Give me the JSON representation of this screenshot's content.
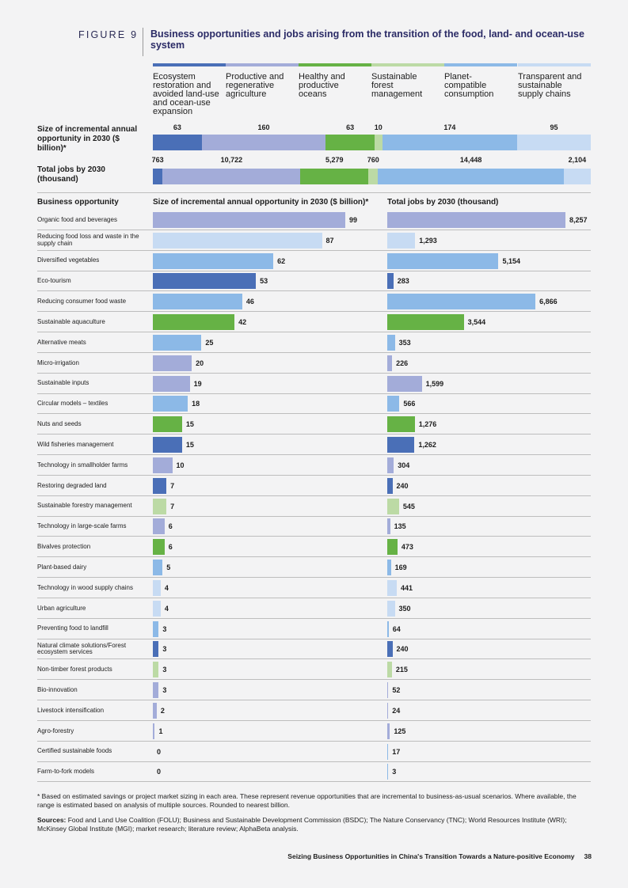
{
  "figure": {
    "label": "FIGURE 9",
    "title": "Business opportunities and jobs arising from the transition of the food, land- and ocean-use system"
  },
  "colors": {
    "ecosystem": "#4a6fb7",
    "productive": "#a3acd9",
    "oceans": "#66b245",
    "forest": "#bcdaa5",
    "planet": "#8cb9e7",
    "supply": "#c7dbf3",
    "gridline": "#bdbdbd"
  },
  "summary": {
    "size_label": "Size of incremental annual opportunity in 2030 ($ billion)*",
    "jobs_label": "Total jobs by 2030 (thousand)"
  },
  "sections": {
    "business_label": "Business opportunity",
    "size_header": "Size of incremental annual opportunity in 2030 ($ billion)*",
    "jobs_header": "Total jobs by 2030 (thousand)"
  },
  "chart_data": {
    "type": "bar",
    "categories": [
      {
        "key": "ecosystem",
        "label": "Ecosystem restoration and avoided land-use and ocean-use expansion",
        "size_label": "63",
        "jobs_label": "763"
      },
      {
        "key": "productive",
        "label": "Productive and regenerative agriculture",
        "size_label": "160",
        "jobs_label": "10,722"
      },
      {
        "key": "oceans",
        "label": "Healthy and productive oceans",
        "size_label": "63",
        "jobs_label": "5,279"
      },
      {
        "key": "forest",
        "label": "Sustainable forest management",
        "size_label": "10",
        "jobs_label": "760"
      },
      {
        "key": "planet",
        "label": "Planet-compatible consumption",
        "size_label": "174",
        "jobs_label": "14,448"
      },
      {
        "key": "supply",
        "label": "Transparent and sustainable supply chains",
        "size_label": "95",
        "jobs_label": "2,104"
      }
    ],
    "summary_size": [
      63,
      160,
      63,
      10,
      174,
      95
    ],
    "summary_jobs": [
      763,
      10722,
      5279,
      760,
      14448,
      2104
    ],
    "opportunities": [
      {
        "label": "Organic food and beverages",
        "cat": "productive",
        "size": 99,
        "jobs": 8257,
        "size_label": "99",
        "jobs_label": "8,257"
      },
      {
        "label": "Reducing food loss and waste in the supply chain",
        "cat": "supply",
        "size": 87,
        "jobs": 1293,
        "size_label": "87",
        "jobs_label": "1,293"
      },
      {
        "label": "Diversified vegetables",
        "cat": "planet",
        "size": 62,
        "jobs": 5154,
        "size_label": "62",
        "jobs_label": "5,154"
      },
      {
        "label": "Eco-tourism",
        "cat": "ecosystem",
        "size": 53,
        "jobs": 283,
        "size_label": "53",
        "jobs_label": "283"
      },
      {
        "label": "Reducing consumer food waste",
        "cat": "planet",
        "size": 46,
        "jobs": 6866,
        "size_label": "46",
        "jobs_label": "6,866"
      },
      {
        "label": "Sustainable aquaculture",
        "cat": "oceans",
        "size": 42,
        "jobs": 3544,
        "size_label": "42",
        "jobs_label": "3,544"
      },
      {
        "label": "Alternative meats",
        "cat": "planet",
        "size": 25,
        "jobs": 353,
        "size_label": "25",
        "jobs_label": "353"
      },
      {
        "label": "Micro-irrigation",
        "cat": "productive",
        "size": 20,
        "jobs": 226,
        "size_label": "20",
        "jobs_label": "226"
      },
      {
        "label": "Sustainable inputs",
        "cat": "productive",
        "size": 19,
        "jobs": 1599,
        "size_label": "19",
        "jobs_label": "1,599"
      },
      {
        "label": "Circular models – textiles",
        "cat": "planet",
        "size": 18,
        "jobs": 566,
        "size_label": "18",
        "jobs_label": "566"
      },
      {
        "label": "Nuts and seeds",
        "cat": "oceans",
        "size": 15,
        "jobs": 1276,
        "size_label": "15",
        "jobs_label": "1,276"
      },
      {
        "label": "Wild fisheries management",
        "cat": "ecosystem",
        "size": 15,
        "jobs": 1262,
        "size_label": "15",
        "jobs_label": "1,262"
      },
      {
        "label": "Technology in smallholder farms",
        "cat": "productive",
        "size": 10,
        "jobs": 304,
        "size_label": "10",
        "jobs_label": "304"
      },
      {
        "label": "Restoring degraded land",
        "cat": "ecosystem",
        "size": 7,
        "jobs": 240,
        "size_label": "7",
        "jobs_label": "240"
      },
      {
        "label": "Sustainable forestry management",
        "cat": "forest",
        "size": 7,
        "jobs": 545,
        "size_label": "7",
        "jobs_label": "545"
      },
      {
        "label": "Technology in large-scale farms",
        "cat": "productive",
        "size": 6,
        "jobs": 135,
        "size_label": "6",
        "jobs_label": "135"
      },
      {
        "label": "Bivalves protection",
        "cat": "oceans",
        "size": 6,
        "jobs": 473,
        "size_label": "6",
        "jobs_label": "473"
      },
      {
        "label": "Plant-based dairy",
        "cat": "planet",
        "size": 5,
        "jobs": 169,
        "size_label": "5",
        "jobs_label": "169"
      },
      {
        "label": "Technology in wood supply chains",
        "cat": "supply",
        "size": 4,
        "jobs": 441,
        "size_label": "4",
        "jobs_label": "441"
      },
      {
        "label": "Urban agriculture",
        "cat": "supply",
        "size": 4,
        "jobs": 350,
        "size_label": "4",
        "jobs_label": "350"
      },
      {
        "label": "Preventing food to landfill",
        "cat": "planet",
        "size": 3,
        "jobs": 64,
        "size_label": "3",
        "jobs_label": "64"
      },
      {
        "label": "Natural climate solutions/Forest ecosystem services",
        "cat": "ecosystem",
        "size": 3,
        "jobs": 240,
        "size_label": "3",
        "jobs_label": "240"
      },
      {
        "label": "Non-timber forest products",
        "cat": "forest",
        "size": 3,
        "jobs": 215,
        "size_label": "3",
        "jobs_label": "215"
      },
      {
        "label": "Bio-innovation",
        "cat": "productive",
        "size": 3,
        "jobs": 52,
        "size_label": "3",
        "jobs_label": "52"
      },
      {
        "label": "Livestock intensification",
        "cat": "productive",
        "size": 2,
        "jobs": 24,
        "size_label": "2",
        "jobs_label": "24"
      },
      {
        "label": "Agro-forestry",
        "cat": "productive",
        "size": 1,
        "jobs": 125,
        "size_label": "1",
        "jobs_label": "125"
      },
      {
        "label": "Certified sustainable foods",
        "cat": "planet",
        "size": 0,
        "jobs": 17,
        "size_label": "0",
        "jobs_label": "17"
      },
      {
        "label": "Farm-to-fork models",
        "cat": "planet",
        "size": 0,
        "jobs": 3,
        "size_label": "0",
        "jobs_label": "3"
      }
    ]
  },
  "footnotes": {
    "note": "* Based on estimated savings or project market sizing in each area. These represent revenue opportunities that are incremental to business-as-usual scenarios. Where available, the range is estimated based on analysis of multiple sources. Rounded to nearest billion.",
    "sources_label": "Sources:",
    "sources_text": " Food and Land Use Coalition (FOLU); Business and Sustainable Development Commission (BSDC); The Nature Conservancy (TNC); World Resources Institute (WRI); McKinsey Global Institute (MGI); market research; literature review; AlphaBeta analysis."
  },
  "footer": {
    "title": "Seizing Business Opportunities in China's Transition Towards a Nature-positive Economy",
    "page": "38"
  }
}
